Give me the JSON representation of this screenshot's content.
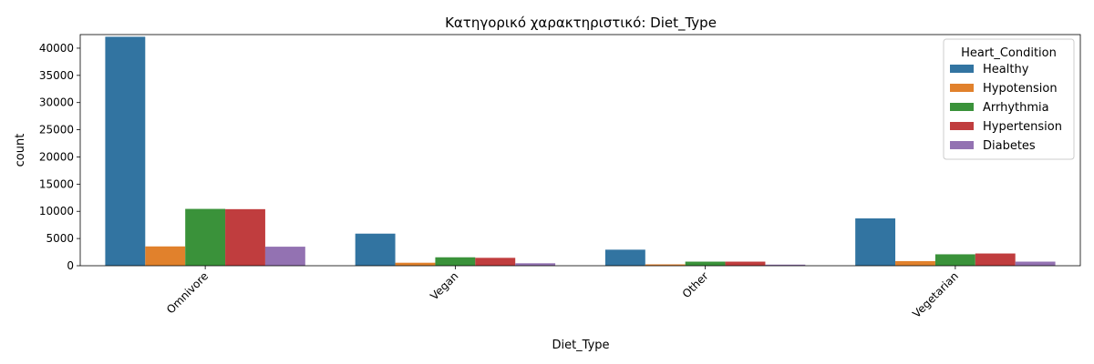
{
  "chart_data": {
    "type": "bar",
    "title": "Κατηγορικό χαρακτηριστικό: Diet_Type",
    "xlabel": "Diet_Type",
    "ylabel": "count",
    "categories": [
      "Omnivore",
      "Vegan",
      "Other",
      "Vegetarian"
    ],
    "ylim": [
      0,
      42500
    ],
    "yticks": [
      0,
      5000,
      10000,
      15000,
      20000,
      25000,
      30000,
      35000,
      40000
    ],
    "legend": {
      "title": "Heart_Condition",
      "placement": "top-right"
    },
    "series": [
      {
        "name": "Healthy",
        "color": "#3274a1",
        "values": [
          42100,
          5900,
          2950,
          8700
        ]
      },
      {
        "name": "Hypotension",
        "color": "#e1812c",
        "values": [
          3550,
          550,
          250,
          850
        ]
      },
      {
        "name": "Arrhythmia",
        "color": "#3a923a",
        "values": [
          10450,
          1550,
          750,
          2100
        ]
      },
      {
        "name": "Hypertension",
        "color": "#c03d3e",
        "values": [
          10400,
          1450,
          750,
          2250
        ]
      },
      {
        "name": "Diabetes",
        "color": "#9372b2",
        "values": [
          3500,
          450,
          200,
          750
        ]
      }
    ]
  }
}
